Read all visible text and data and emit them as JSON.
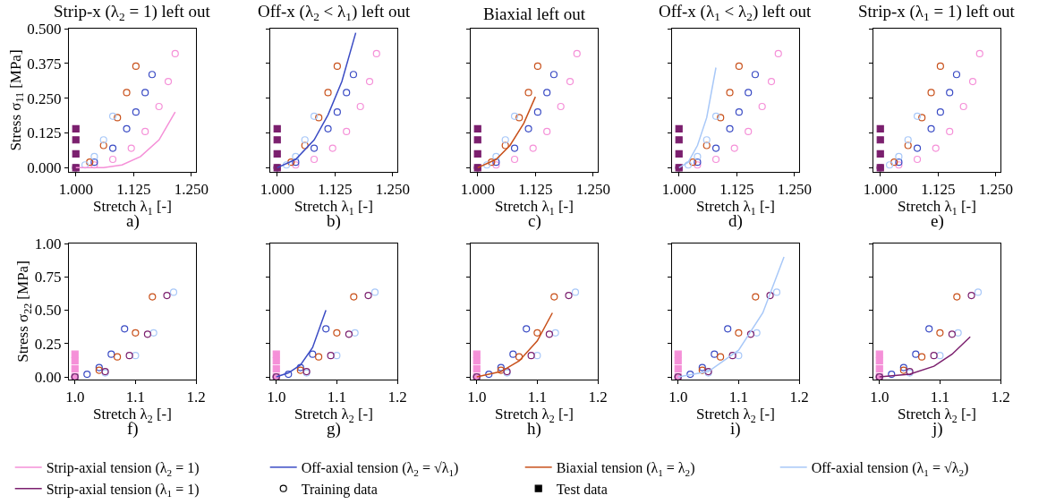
{
  "chart_data": [
    {
      "type": "line",
      "title": "Strip-x (λ$_{2}$ = 1) left out",
      "xlabel": "Stretch λ$_{1}$ [-]",
      "ylabel": "Stress σ$_{11}$ [MPa]",
      "annotations": [
        "a)"
      ],
      "xlim": [
        0.985,
        1.26
      ],
      "ylim": [
        -0.015,
        0.5
      ],
      "xticks": [
        {
          "value": 1.0,
          "label": "1.000"
        },
        {
          "value": 1.125,
          "label": "1.125"
        },
        {
          "value": 1.25,
          "label": "1.250"
        }
      ],
      "yticks": [
        {
          "value": 0,
          "label": "0.000"
        },
        {
          "value": 0.125,
          "label": "0.125"
        },
        {
          "value": 0.25,
          "label": "0.250"
        },
        {
          "value": 0.375,
          "label": "0.375"
        },
        {
          "value": 0.5,
          "label": "0.500"
        }
      ],
      "legend": "bottom",
      "series": [
        {
          "type": "scatter",
          "marker": "circle",
          "color": "#f590d8",
          "x": [
            1.0,
            1.04,
            1.08,
            1.12,
            1.15,
            1.18,
            1.2,
            1.215
          ],
          "values": [
            0,
            0.01,
            0.03,
            0.07,
            0.13,
            0.22,
            0.31,
            0.41
          ]
        },
        {
          "type": "scatter",
          "marker": "circle",
          "color": "#3a4bc4",
          "x": [
            1.0,
            1.04,
            1.08,
            1.11,
            1.13,
            1.15,
            1.165
          ],
          "values": [
            0,
            0.02,
            0.07,
            0.14,
            0.2,
            0.27,
            0.335
          ]
        },
        {
          "type": "scatter",
          "marker": "circle",
          "color": "#c8501a",
          "x": [
            1.0,
            1.03,
            1.06,
            1.09,
            1.11,
            1.13
          ],
          "values": [
            0,
            0.02,
            0.08,
            0.18,
            0.27,
            0.365
          ]
        },
        {
          "type": "scatter",
          "marker": "circle",
          "color": "#a8c8f8",
          "x": [
            1.0,
            1.02,
            1.04,
            1.06,
            1.08
          ],
          "values": [
            0,
            0.01,
            0.04,
            0.1,
            0.185
          ]
        },
        {
          "type": "scatter",
          "marker": "square",
          "color": "#7b1f6e",
          "x": [
            1.0,
            1.0,
            1.0,
            1.0
          ],
          "values": [
            0,
            0.05,
            0.1,
            0.14
          ]
        },
        {
          "name": "Strip-axial tension (λ$_{2}$ = 1)",
          "color": "#f590d8",
          "x": [
            1.0,
            1.06,
            1.1,
            1.14,
            1.18,
            1.215
          ],
          "values": [
            0,
            0,
            0.01,
            0.04,
            0.1,
            0.2
          ]
        }
      ]
    },
    {
      "type": "line",
      "title": "Off-x (λ$_{2}$ < λ$_{1}$) left out",
      "xlabel": "Stretch λ$_{1}$ [-]",
      "annotations": [
        "b)"
      ],
      "tick_labels": "x",
      "xlim": [
        0.985,
        1.26
      ],
      "ylim": [
        -0.015,
        0.5
      ],
      "xticks": [
        {
          "value": 1.0,
          "label": "1.000"
        },
        {
          "value": 1.125,
          "label": "1.125"
        },
        {
          "value": 1.25,
          "label": "1.250"
        }
      ],
      "series": [
        {
          "type": "scatter",
          "marker": "circle",
          "color": "#f590d8",
          "x": [
            1.0,
            1.04,
            1.08,
            1.12,
            1.15,
            1.18,
            1.2,
            1.215
          ],
          "values": [
            0,
            0.01,
            0.03,
            0.07,
            0.13,
            0.22,
            0.31,
            0.41
          ]
        },
        {
          "type": "scatter",
          "marker": "circle",
          "color": "#3a4bc4",
          "x": [
            1.0,
            1.04,
            1.08,
            1.11,
            1.13,
            1.15,
            1.165
          ],
          "values": [
            0,
            0.02,
            0.07,
            0.14,
            0.2,
            0.27,
            0.335
          ]
        },
        {
          "type": "scatter",
          "marker": "circle",
          "color": "#c8501a",
          "x": [
            1.0,
            1.03,
            1.06,
            1.09,
            1.11,
            1.13
          ],
          "values": [
            0,
            0.02,
            0.08,
            0.18,
            0.27,
            0.365
          ]
        },
        {
          "type": "scatter",
          "marker": "circle",
          "color": "#a8c8f8",
          "x": [
            1.0,
            1.02,
            1.04,
            1.06,
            1.08
          ],
          "values": [
            0,
            0.01,
            0.04,
            0.1,
            0.185
          ]
        },
        {
          "type": "scatter",
          "marker": "square",
          "color": "#7b1f6e",
          "x": [
            1.0,
            1.0,
            1.0,
            1.0
          ],
          "values": [
            0,
            0.05,
            0.1,
            0.14
          ]
        },
        {
          "name": "Off-axial tension (λ$_{2}$ = √λ$_{1}$)",
          "color": "#3a4bc4",
          "x": [
            1.0,
            1.04,
            1.08,
            1.11,
            1.14,
            1.17
          ],
          "values": [
            0,
            0.03,
            0.1,
            0.19,
            0.31,
            0.485
          ]
        }
      ]
    },
    {
      "type": "line",
      "title": "Biaxial left out",
      "xlabel": "Stretch λ$_{1}$ [-]",
      "annotations": [
        "c)"
      ],
      "tick_labels": "x",
      "xlim": [
        0.985,
        1.26
      ],
      "ylim": [
        -0.015,
        0.5
      ],
      "xticks": [
        {
          "value": 1.0,
          "label": "1.000"
        },
        {
          "value": 1.125,
          "label": "1.125"
        },
        {
          "value": 1.25,
          "label": "1.250"
        }
      ],
      "series": [
        {
          "type": "scatter",
          "marker": "circle",
          "color": "#f590d8",
          "x": [
            1.0,
            1.04,
            1.08,
            1.12,
            1.15,
            1.18,
            1.2,
            1.215
          ],
          "values": [
            0,
            0.01,
            0.03,
            0.07,
            0.13,
            0.22,
            0.31,
            0.41
          ]
        },
        {
          "type": "scatter",
          "marker": "circle",
          "color": "#3a4bc4",
          "x": [
            1.0,
            1.04,
            1.08,
            1.11,
            1.13,
            1.15,
            1.165
          ],
          "values": [
            0,
            0.02,
            0.07,
            0.14,
            0.2,
            0.27,
            0.335
          ]
        },
        {
          "type": "scatter",
          "marker": "circle",
          "color": "#c8501a",
          "x": [
            1.0,
            1.03,
            1.06,
            1.09,
            1.11,
            1.13
          ],
          "values": [
            0,
            0.02,
            0.08,
            0.18,
            0.27,
            0.365
          ]
        },
        {
          "type": "scatter",
          "marker": "circle",
          "color": "#a8c8f8",
          "x": [
            1.0,
            1.02,
            1.04,
            1.06,
            1.08
          ],
          "values": [
            0,
            0.01,
            0.04,
            0.1,
            0.185
          ]
        },
        {
          "type": "scatter",
          "marker": "square",
          "color": "#7b1f6e",
          "x": [
            1.0,
            1.0,
            1.0,
            1.0
          ],
          "values": [
            0,
            0.05,
            0.1,
            0.14
          ]
        },
        {
          "name": "Biaxial tension (λ$_{1}$ = λ$_{2}$)",
          "color": "#c8501a",
          "x": [
            1.0,
            1.04,
            1.07,
            1.1,
            1.125
          ],
          "values": [
            0,
            0.03,
            0.08,
            0.16,
            0.255
          ]
        }
      ]
    },
    {
      "type": "line",
      "title": "Off-x (λ$_{1}$ < λ$_{2}$) left out",
      "xlabel": "Stretch λ$_{1}$ [-]",
      "annotations": [
        "d)"
      ],
      "tick_labels": "x",
      "xlim": [
        0.985,
        1.26
      ],
      "ylim": [
        -0.015,
        0.5
      ],
      "xticks": [
        {
          "value": 1.0,
          "label": "1.000"
        },
        {
          "value": 1.125,
          "label": "1.125"
        },
        {
          "value": 1.25,
          "label": "1.250"
        }
      ],
      "series": [
        {
          "type": "scatter",
          "marker": "circle",
          "color": "#f590d8",
          "x": [
            1.0,
            1.04,
            1.08,
            1.12,
            1.15,
            1.18,
            1.2,
            1.215
          ],
          "values": [
            0,
            0.01,
            0.03,
            0.07,
            0.13,
            0.22,
            0.31,
            0.41
          ]
        },
        {
          "type": "scatter",
          "marker": "circle",
          "color": "#3a4bc4",
          "x": [
            1.0,
            1.04,
            1.08,
            1.11,
            1.13,
            1.15,
            1.165
          ],
          "values": [
            0,
            0.02,
            0.07,
            0.14,
            0.2,
            0.27,
            0.335
          ]
        },
        {
          "type": "scatter",
          "marker": "circle",
          "color": "#c8501a",
          "x": [
            1.0,
            1.03,
            1.06,
            1.09,
            1.11,
            1.13
          ],
          "values": [
            0,
            0.02,
            0.08,
            0.18,
            0.27,
            0.365
          ]
        },
        {
          "type": "scatter",
          "marker": "circle",
          "color": "#a8c8f8",
          "x": [
            1.0,
            1.02,
            1.04,
            1.06,
            1.08
          ],
          "values": [
            0,
            0.01,
            0.04,
            0.1,
            0.185
          ]
        },
        {
          "type": "scatter",
          "marker": "square",
          "color": "#7b1f6e",
          "x": [
            1.0,
            1.0,
            1.0,
            1.0
          ],
          "values": [
            0,
            0.05,
            0.1,
            0.14
          ]
        },
        {
          "name": "Off-axial tension (λ$_{1}$ = √λ$_{2}$)",
          "color": "#a8c8f8",
          "x": [
            1.0,
            1.02,
            1.04,
            1.06,
            1.08
          ],
          "values": [
            0,
            0.02,
            0.08,
            0.18,
            0.36
          ]
        }
      ]
    },
    {
      "type": "line",
      "title": "Strip-x (λ$_{1}$ = 1) left out",
      "xlabel": "Stretch λ$_{1}$ [-]",
      "annotations": [
        "e)"
      ],
      "tick_labels": "x",
      "xlim": [
        0.985,
        1.26
      ],
      "ylim": [
        -0.015,
        0.5
      ],
      "xticks": [
        {
          "value": 1.0,
          "label": "1.000"
        },
        {
          "value": 1.125,
          "label": "1.125"
        },
        {
          "value": 1.25,
          "label": "1.250"
        }
      ],
      "series": [
        {
          "type": "scatter",
          "marker": "circle",
          "color": "#f590d8",
          "x": [
            1.0,
            1.04,
            1.08,
            1.12,
            1.15,
            1.18,
            1.2,
            1.215
          ],
          "values": [
            0,
            0.01,
            0.03,
            0.07,
            0.13,
            0.22,
            0.31,
            0.41
          ]
        },
        {
          "type": "scatter",
          "marker": "circle",
          "color": "#3a4bc4",
          "x": [
            1.0,
            1.04,
            1.08,
            1.11,
            1.13,
            1.15,
            1.165
          ],
          "values": [
            0,
            0.02,
            0.07,
            0.14,
            0.2,
            0.27,
            0.335
          ]
        },
        {
          "type": "scatter",
          "marker": "circle",
          "color": "#c8501a",
          "x": [
            1.0,
            1.03,
            1.06,
            1.09,
            1.11,
            1.13
          ],
          "values": [
            0,
            0.02,
            0.08,
            0.18,
            0.27,
            0.365
          ]
        },
        {
          "type": "scatter",
          "marker": "circle",
          "color": "#a8c8f8",
          "x": [
            1.0,
            1.02,
            1.04,
            1.06,
            1.08
          ],
          "values": [
            0,
            0.01,
            0.04,
            0.1,
            0.185
          ]
        },
        {
          "type": "scatter",
          "marker": "square",
          "color": "#7b1f6e",
          "x": [
            1.0,
            1.0,
            1.0,
            1.0
          ],
          "values": [
            0,
            0.05,
            0.1,
            0.14
          ]
        }
      ]
    },
    {
      "type": "line",
      "xlabel": "Stretch λ$_{2}$ [-]",
      "ylabel": "Stress σ$_{22}$ [MPa]",
      "annotations": [
        "f)"
      ],
      "xlim": [
        0.99,
        1.2
      ],
      "ylim": [
        -0.02,
        1.0
      ],
      "xticks": [
        {
          "value": 1.0,
          "label": "1.0"
        },
        {
          "value": 1.1,
          "label": "1.1"
        },
        {
          "value": 1.2,
          "label": "1.2"
        }
      ],
      "yticks": [
        {
          "value": 0,
          "label": "0.00"
        },
        {
          "value": 0.25,
          "label": "0.25"
        },
        {
          "value": 0.5,
          "label": "0.50"
        },
        {
          "value": 0.75,
          "label": "0.75"
        },
        {
          "value": 1.0,
          "label": "1.00"
        }
      ],
      "series": [
        {
          "type": "scatter",
          "marker": "square",
          "color": "#f590d8",
          "x": [
            1.0,
            1.0,
            1.0,
            1.0
          ],
          "values": [
            0,
            0.06,
            0.12,
            0.17
          ]
        },
        {
          "type": "scatter",
          "marker": "circle",
          "color": "#3a4bc4",
          "x": [
            1.0,
            1.02,
            1.04,
            1.06,
            1.082
          ],
          "values": [
            0,
            0.02,
            0.07,
            0.17,
            0.36
          ]
        },
        {
          "type": "scatter",
          "marker": "circle",
          "color": "#c8501a",
          "x": [
            1.0,
            1.04,
            1.07,
            1.1,
            1.128
          ],
          "values": [
            0,
            0.05,
            0.15,
            0.33,
            0.6
          ]
        },
        {
          "type": "scatter",
          "marker": "circle",
          "color": "#a8c8f8",
          "x": [
            1.0,
            1.05,
            1.1,
            1.13,
            1.163
          ],
          "values": [
            0,
            0.03,
            0.16,
            0.33,
            0.635
          ]
        },
        {
          "type": "scatter",
          "marker": "circle",
          "color": "#7b1f6e",
          "x": [
            1.0,
            1.05,
            1.09,
            1.12,
            1.152
          ],
          "values": [
            0,
            0.04,
            0.16,
            0.32,
            0.61
          ]
        }
      ]
    },
    {
      "type": "line",
      "xlabel": "Stretch λ$_{2}$ [-]",
      "annotations": [
        "g)"
      ],
      "tick_labels": "x",
      "xlim": [
        0.99,
        1.2
      ],
      "ylim": [
        -0.02,
        1.0
      ],
      "xticks": [
        {
          "value": 1.0,
          "label": "1.0"
        },
        {
          "value": 1.1,
          "label": "1.1"
        },
        {
          "value": 1.2,
          "label": "1.2"
        }
      ],
      "series": [
        {
          "type": "scatter",
          "marker": "square",
          "color": "#f590d8",
          "x": [
            1.0,
            1.0,
            1.0,
            1.0
          ],
          "values": [
            0,
            0.06,
            0.12,
            0.17
          ]
        },
        {
          "type": "scatter",
          "marker": "circle",
          "color": "#3a4bc4",
          "x": [
            1.0,
            1.02,
            1.04,
            1.06,
            1.082
          ],
          "values": [
            0,
            0.02,
            0.07,
            0.17,
            0.36
          ]
        },
        {
          "type": "scatter",
          "marker": "circle",
          "color": "#c8501a",
          "x": [
            1.0,
            1.04,
            1.07,
            1.1,
            1.128
          ],
          "values": [
            0,
            0.05,
            0.15,
            0.33,
            0.6
          ]
        },
        {
          "type": "scatter",
          "marker": "circle",
          "color": "#a8c8f8",
          "x": [
            1.0,
            1.05,
            1.1,
            1.13,
            1.163
          ],
          "values": [
            0,
            0.03,
            0.16,
            0.33,
            0.635
          ]
        },
        {
          "type": "scatter",
          "marker": "circle",
          "color": "#7b1f6e",
          "x": [
            1.0,
            1.05,
            1.09,
            1.12,
            1.152
          ],
          "values": [
            0,
            0.04,
            0.16,
            0.32,
            0.61
          ]
        },
        {
          "color": "#3a4bc4",
          "x": [
            1.0,
            1.02,
            1.04,
            1.06,
            1.082
          ],
          "values": [
            0,
            0.03,
            0.09,
            0.22,
            0.5
          ]
        }
      ]
    },
    {
      "type": "line",
      "xlabel": "Stretch λ$_{2}$ [-]",
      "annotations": [
        "h)"
      ],
      "tick_labels": "x",
      "xlim": [
        0.99,
        1.2
      ],
      "ylim": [
        -0.02,
        1.0
      ],
      "xticks": [
        {
          "value": 1.0,
          "label": "1.0"
        },
        {
          "value": 1.1,
          "label": "1.1"
        },
        {
          "value": 1.2,
          "label": "1.2"
        }
      ],
      "series": [
        {
          "type": "scatter",
          "marker": "square",
          "color": "#f590d8",
          "x": [
            1.0,
            1.0,
            1.0,
            1.0
          ],
          "values": [
            0,
            0.06,
            0.12,
            0.17
          ]
        },
        {
          "type": "scatter",
          "marker": "circle",
          "color": "#3a4bc4",
          "x": [
            1.0,
            1.02,
            1.04,
            1.06,
            1.082
          ],
          "values": [
            0,
            0.02,
            0.07,
            0.17,
            0.36
          ]
        },
        {
          "type": "scatter",
          "marker": "circle",
          "color": "#c8501a",
          "x": [
            1.0,
            1.04,
            1.07,
            1.1,
            1.128
          ],
          "values": [
            0,
            0.05,
            0.15,
            0.33,
            0.6
          ]
        },
        {
          "type": "scatter",
          "marker": "circle",
          "color": "#a8c8f8",
          "x": [
            1.0,
            1.05,
            1.1,
            1.13,
            1.163
          ],
          "values": [
            0,
            0.03,
            0.16,
            0.33,
            0.635
          ]
        },
        {
          "type": "scatter",
          "marker": "circle",
          "color": "#7b1f6e",
          "x": [
            1.0,
            1.05,
            1.09,
            1.12,
            1.152
          ],
          "values": [
            0,
            0.04,
            0.16,
            0.32,
            0.61
          ]
        },
        {
          "color": "#c8501a",
          "x": [
            1.0,
            1.04,
            1.07,
            1.1,
            1.125
          ],
          "values": [
            0,
            0.04,
            0.12,
            0.27,
            0.48
          ]
        }
      ]
    },
    {
      "type": "line",
      "xlabel": "Stretch λ$_{2}$ [-]",
      "annotations": [
        "i)"
      ],
      "tick_labels": "x",
      "xlim": [
        0.99,
        1.2
      ],
      "ylim": [
        -0.02,
        1.0
      ],
      "xticks": [
        {
          "value": 1.0,
          "label": "1.0"
        },
        {
          "value": 1.1,
          "label": "1.1"
        },
        {
          "value": 1.2,
          "label": "1.2"
        }
      ],
      "series": [
        {
          "type": "scatter",
          "marker": "square",
          "color": "#f590d8",
          "x": [
            1.0,
            1.0,
            1.0,
            1.0
          ],
          "values": [
            0,
            0.06,
            0.12,
            0.17
          ]
        },
        {
          "type": "scatter",
          "marker": "circle",
          "color": "#3a4bc4",
          "x": [
            1.0,
            1.02,
            1.04,
            1.06,
            1.082
          ],
          "values": [
            0,
            0.02,
            0.07,
            0.17,
            0.36
          ]
        },
        {
          "type": "scatter",
          "marker": "circle",
          "color": "#c8501a",
          "x": [
            1.0,
            1.04,
            1.07,
            1.1,
            1.128
          ],
          "values": [
            0,
            0.05,
            0.15,
            0.33,
            0.6
          ]
        },
        {
          "type": "scatter",
          "marker": "circle",
          "color": "#a8c8f8",
          "x": [
            1.0,
            1.05,
            1.1,
            1.13,
            1.163
          ],
          "values": [
            0,
            0.03,
            0.16,
            0.33,
            0.635
          ]
        },
        {
          "type": "scatter",
          "marker": "circle",
          "color": "#7b1f6e",
          "x": [
            1.0,
            1.05,
            1.09,
            1.12,
            1.152
          ],
          "values": [
            0,
            0.04,
            0.16,
            0.32,
            0.61
          ]
        },
        {
          "color": "#a8c8f8",
          "x": [
            1.0,
            1.05,
            1.1,
            1.14,
            1.175
          ],
          "values": [
            0,
            0.04,
            0.2,
            0.48,
            0.9
          ]
        }
      ]
    },
    {
      "type": "line",
      "xlabel": "Stretch λ$_{2}$ [-]",
      "annotations": [
        "j)"
      ],
      "tick_labels": "x",
      "xlim": [
        0.99,
        1.2
      ],
      "ylim": [
        -0.02,
        1.0
      ],
      "xticks": [
        {
          "value": 1.0,
          "label": "1.0"
        },
        {
          "value": 1.1,
          "label": "1.1"
        },
        {
          "value": 1.2,
          "label": "1.2"
        }
      ],
      "series": [
        {
          "type": "scatter",
          "marker": "square",
          "color": "#f590d8",
          "x": [
            1.0,
            1.0,
            1.0,
            1.0
          ],
          "values": [
            0,
            0.06,
            0.12,
            0.17
          ]
        },
        {
          "type": "scatter",
          "marker": "circle",
          "color": "#3a4bc4",
          "x": [
            1.0,
            1.02,
            1.04,
            1.06,
            1.082
          ],
          "values": [
            0,
            0.02,
            0.07,
            0.17,
            0.36
          ]
        },
        {
          "type": "scatter",
          "marker": "circle",
          "color": "#c8501a",
          "x": [
            1.0,
            1.04,
            1.07,
            1.1,
            1.128
          ],
          "values": [
            0,
            0.05,
            0.15,
            0.33,
            0.6
          ]
        },
        {
          "type": "scatter",
          "marker": "circle",
          "color": "#a8c8f8",
          "x": [
            1.0,
            1.05,
            1.1,
            1.13,
            1.163
          ],
          "values": [
            0,
            0.03,
            0.16,
            0.33,
            0.635
          ]
        },
        {
          "type": "scatter",
          "marker": "circle",
          "color": "#7b1f6e",
          "x": [
            1.0,
            1.05,
            1.09,
            1.12,
            1.152
          ],
          "values": [
            0,
            0.04,
            0.16,
            0.32,
            0.61
          ]
        },
        {
          "name": "Strip-axial tension (λ$_{1}$ = 1)",
          "color": "#7b1f6e",
          "x": [
            1.0,
            1.05,
            1.09,
            1.12,
            1.15
          ],
          "values": [
            0,
            0.02,
            0.08,
            0.17,
            0.3
          ]
        },
        {
          "type": "scatter",
          "name": "Training data",
          "marker": "circle",
          "color": "#000000",
          "x": [
            null
          ],
          "values": [
            null
          ]
        },
        {
          "type": "scatter",
          "name": "Test data",
          "marker": "square",
          "color": "#000000",
          "x": [
            null
          ],
          "values": [
            null
          ]
        }
      ]
    }
  ]
}
